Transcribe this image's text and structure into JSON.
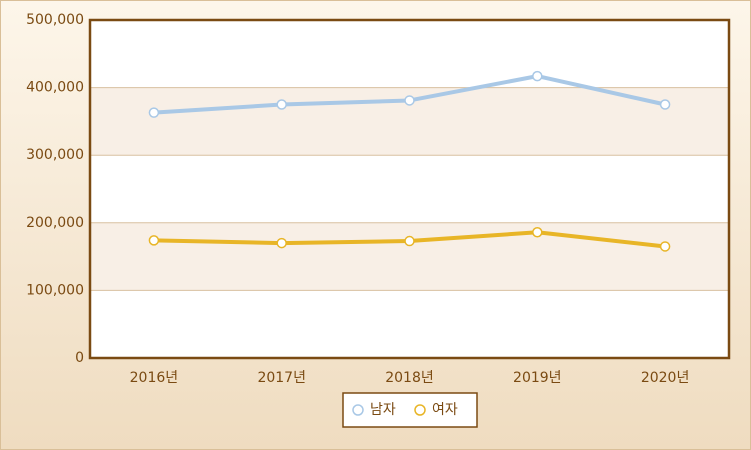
{
  "chart_data": {
    "type": "line",
    "categories": [
      "2016년",
      "2017년",
      "2018년",
      "2019년",
      "2020년"
    ],
    "series": [
      {
        "name": "남자",
        "color": "#a9c8e6",
        "values": [
          363000,
          375000,
          381000,
          417000,
          375000
        ]
      },
      {
        "name": "여자",
        "color": "#e8b527",
        "values": [
          174000,
          170000,
          173000,
          186000,
          165000
        ]
      }
    ],
    "ylim": [
      0,
      500000
    ],
    "yticks": [
      0,
      {
        "value": 100000,
        "label": "100,000"
      },
      {
        "value": 200000,
        "label": "200,000"
      },
      {
        "value": 300000,
        "label": "300,000"
      },
      {
        "value": 400000,
        "label": "400,000"
      },
      {
        "value": 500000,
        "label": "500,000"
      }
    ],
    "grid": true,
    "legend": "bottom"
  }
}
